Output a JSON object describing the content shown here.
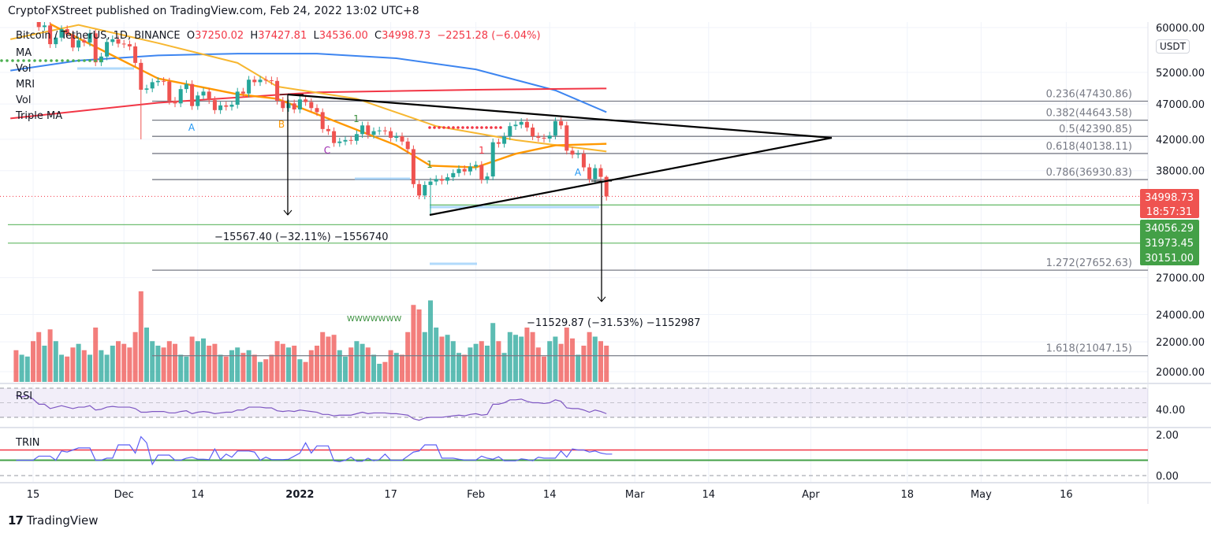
{
  "header": {
    "published": "CryptoFXStreet published on TradingView.com, Feb 24, 2022 13:02 UTC+8"
  },
  "legend": {
    "symbol": "Bitcoin / TetherUS, 1D, BINANCE",
    "o_label": "O",
    "o": "37250.02",
    "h_label": "H",
    "h": "37427.81",
    "l_label": "L",
    "l": "34536.00",
    "c_label": "C",
    "c": "34998.73",
    "change": "−2251.28 (−6.04%)",
    "indicators": [
      "MA",
      "Vol",
      "MRI",
      "Vol",
      "Triple MA"
    ]
  },
  "currency_badge": "USDT",
  "footer": {
    "brand": "TradingView"
  },
  "colors": {
    "up": "#26a69a",
    "down": "#ef5350",
    "ma_blue": "#3d85f0",
    "ma_orange": "#ff9800",
    "ma_yellow": "#f7b731",
    "ma_red": "#f23645",
    "rsi": "#7e57c2",
    "trin": "#5b5ef5",
    "fib": "#787b86",
    "support": "#4caf50"
  },
  "chart_data": [
    {
      "type": "candlestick",
      "title": "Bitcoin / TetherUS, 1D, BINANCE",
      "scale": "log",
      "ylim": [
        19500,
        61000
      ],
      "y_ticks": [
        "60000.00",
        "52000.00",
        "47000.00",
        "42000.00",
        "38000.00",
        "27000.00",
        "24000.00",
        "22000.00",
        "20000.00"
      ],
      "y_tick_values": [
        60000,
        52000,
        47000,
        42000,
        38000,
        27000,
        24000,
        22000,
        20000
      ],
      "x_ticks": [
        {
          "label": "15",
          "date": "2021-11-15"
        },
        {
          "label": "Dec",
          "date": "2021-12-01"
        },
        {
          "label": "14",
          "date": "2021-12-14"
        },
        {
          "label": "2022",
          "date": "2022-01-01"
        },
        {
          "label": "17",
          "date": "2022-01-17"
        },
        {
          "label": "Feb",
          "date": "2022-02-01"
        },
        {
          "label": "14",
          "date": "2022-02-14"
        },
        {
          "label": "Mar",
          "date": "2022-03-01"
        },
        {
          "label": "14",
          "date": "2022-03-14"
        },
        {
          "label": "Apr",
          "date": "2022-04-01"
        },
        {
          "label": "18",
          "date": "2022-04-18"
        },
        {
          "label": "May",
          "date": "2022-05-01"
        },
        {
          "label": "16",
          "date": "2022-05-16"
        }
      ],
      "start_date": "2021-11-12",
      "close_k": [
        64.2,
        64.4,
        65.5,
        63.6,
        60.1,
        60.4,
        56.9,
        58.1,
        59.7,
        58.7,
        56.3,
        57.6,
        57.2,
        58.9,
        53.7,
        54.7,
        57.3,
        57.8,
        57.0,
        56.9,
        56.5,
        53.6,
        49.2,
        49.4,
        50.4,
        50.6,
        50.5,
        47.5,
        47.1,
        49.3,
        50.1,
        46.7,
        48.3,
        48.9,
        47.6,
        46.1,
        46.8,
        46.6,
        46.9,
        48.9,
        48.6,
        50.8,
        50.4,
        50.8,
        50.7,
        50.6,
        47.5,
        46.4,
        47.1,
        46.2,
        47.7,
        47.3,
        46.4,
        45.8,
        43.4,
        43.1,
        41.5,
        41.7,
        41.9,
        41.8,
        42.7,
        43.9,
        42.6,
        43.1,
        43.2,
        43.1,
        42.2,
        42.4,
        41.7,
        40.7,
        36.4,
        35.1,
        36.3,
        36.7,
        37.0,
        36.8,
        37.2,
        37.7,
        38.2,
        37.9,
        38.5,
        38.7,
        36.9,
        37.3,
        41.6,
        41.4,
        42.4,
        43.8,
        44.0,
        44.4,
        43.6,
        42.4,
        42.2,
        42.1,
        42.5,
        44.5,
        43.9,
        40.5,
        40.0,
        40.1,
        38.4,
        37.0,
        38.3,
        37.25
      ],
      "last_bar": {
        "date": "2022-02-24",
        "open": 37250.02,
        "high": 37427.81,
        "low": 34536.0,
        "close": 34998.73
      },
      "volume_relative": [
        35,
        30,
        28,
        45,
        55,
        40,
        58,
        45,
        30,
        28,
        38,
        42,
        35,
        30,
        60,
        35,
        30,
        40,
        45,
        42,
        38,
        55,
        100,
        60,
        45,
        40,
        38,
        45,
        42,
        30,
        28,
        50,
        45,
        48,
        40,
        42,
        30,
        28,
        35,
        38,
        32,
        35,
        30,
        22,
        25,
        30,
        45,
        42,
        38,
        40,
        25,
        22,
        35,
        40,
        55,
        50,
        52,
        35,
        28,
        38,
        45,
        42,
        38,
        30,
        20,
        22,
        35,
        32,
        30,
        55,
        85,
        80,
        55,
        90,
        60,
        50,
        52,
        45,
        32,
        30,
        38,
        42,
        45,
        40,
        65,
        45,
        32,
        55,
        52,
        50,
        60,
        55,
        38,
        28,
        45,
        50,
        42,
        60,
        48,
        30,
        40,
        55,
        50,
        45,
        40
      ],
      "moving_averages": [
        {
          "color": "ma_blue",
          "points": [
            [
              "2021-11-11",
              52300
            ],
            [
              "2021-11-23",
              54000
            ],
            [
              "2021-12-07",
              54900
            ],
            [
              "2021-12-21",
              55200
            ],
            [
              "2022-01-04",
              55200
            ],
            [
              "2022-01-18",
              54400
            ],
            [
              "2022-02-01",
              52500
            ],
            [
              "2022-02-15",
              49100
            ],
            [
              "2022-02-24",
              45800
            ]
          ]
        },
        {
          "color": "ma_red",
          "points": [
            [
              "2021-11-11",
              44900
            ],
            [
              "2021-12-07",
              47200
            ],
            [
              "2022-01-04",
              48800
            ],
            [
              "2022-02-01",
              49200
            ],
            [
              "2022-02-24",
              49400
            ]
          ]
        },
        {
          "color": "ma_yellow",
          "points": [
            [
              "2021-11-11",
              57800
            ],
            [
              "2021-11-23",
              60500
            ],
            [
              "2021-12-07",
              57100
            ],
            [
              "2021-12-21",
              53600
            ],
            [
              "2021-12-28",
              49700
            ],
            [
              "2022-01-11",
              47800
            ],
            [
              "2022-01-25",
              43800
            ],
            [
              "2022-02-08",
              41900
            ],
            [
              "2022-02-24",
              40400
            ]
          ]
        },
        {
          "color": "ma_orange",
          "points": [
            [
              "2021-11-18",
              60700
            ],
            [
              "2021-12-07",
              51000
            ],
            [
              "2021-12-21",
              48500
            ],
            [
              "2021-12-28",
              47800
            ],
            [
              "2022-01-04",
              45500
            ],
            [
              "2022-01-18",
              41200
            ],
            [
              "2022-01-24",
              38600
            ],
            [
              "2022-02-01",
              38400
            ],
            [
              "2022-02-08",
              40100
            ],
            [
              "2022-02-15",
              41200
            ],
            [
              "2022-02-24",
              41400
            ]
          ]
        }
      ],
      "fib_levels": [
        {
          "label": "0.236(47430.86)",
          "price": 47430.86
        },
        {
          "label": "0.382(44643.58)",
          "price": 44643.58
        },
        {
          "label": "0.5(42390.85)",
          "price": 42390.85
        },
        {
          "label": "0.618(40138.11)",
          "price": 40138.11
        },
        {
          "label": "0.786(36930.83)",
          "price": 36930.83
        },
        {
          "label": "1.272(27652.63)",
          "price": 27652.63
        },
        {
          "label": "1.618(21047.15)",
          "price": 21047.15
        }
      ],
      "support_levels": [
        34056.29,
        31973.45,
        30151.0
      ],
      "price_labels": {
        "last": "34998.73",
        "countdown": "18:57:31",
        "supports": [
          "34056.29",
          "31973.45",
          "30151.00"
        ]
      },
      "measurements": [
        "−15567.40 (−32.11%) −1556740",
        "−11529.87 (−31.53%) −1152987"
      ],
      "wave_labels": [
        {
          "text": "A",
          "color": "#2196f3"
        },
        {
          "text": "B",
          "color": "#ff9800"
        },
        {
          "text": "C",
          "color": "#9c27b0"
        },
        {
          "text": "1",
          "color": "#388e3c"
        },
        {
          "text": "1",
          "color": "#388e3c"
        },
        {
          "text": "1",
          "color": "#f23645"
        },
        {
          "text": "A",
          "color": "#2196f3"
        }
      ],
      "pattern_text": "WWWWWWW"
    },
    {
      "type": "line",
      "title": "RSI",
      "y_ticks": [
        "40.00"
      ],
      "bands": [
        30,
        50,
        70
      ],
      "values": [
        60,
        58,
        60,
        55,
        48,
        48,
        42,
        44,
        46,
        44,
        42,
        44,
        44,
        46,
        40,
        41,
        44,
        45,
        44,
        44,
        44,
        42,
        37,
        37,
        38,
        38,
        38,
        36,
        36,
        38,
        39,
        35,
        37,
        38,
        37,
        35,
        36,
        37,
        37,
        40,
        40,
        44,
        44,
        44,
        43,
        43,
        39,
        38,
        39,
        38,
        40,
        39,
        38,
        37,
        34,
        34,
        32,
        33,
        33,
        33,
        35,
        37,
        35,
        36,
        36,
        36,
        35,
        35,
        34,
        33,
        28,
        26,
        29,
        30,
        30,
        30,
        31,
        32,
        33,
        32,
        34,
        35,
        33,
        34,
        48,
        48,
        50,
        54,
        54,
        55,
        52,
        50,
        50,
        49,
        50,
        54,
        52,
        43,
        42,
        42,
        40,
        37,
        40,
        38,
        35
      ]
    },
    {
      "type": "line",
      "title": "TRIN",
      "y_ticks": [
        "2.00",
        "0.00"
      ],
      "upper_line": 1.25,
      "lower_line": 0.75,
      "values": [
        0.75,
        0.75,
        0.75,
        0.75,
        0.95,
        0.95,
        0.95,
        0.75,
        1.2,
        1.15,
        1.25,
        1.35,
        1.35,
        1.35,
        0.75,
        0.75,
        0.85,
        0.85,
        1.5,
        1.5,
        1.5,
        1.1,
        1.9,
        1.6,
        0.55,
        1.0,
        1.0,
        1.0,
        0.75,
        0.75,
        0.85,
        0.9,
        0.8,
        0.8,
        0.78,
        1.3,
        0.78,
        1.05,
        0.9,
        1.2,
        1.2,
        1.2,
        1.15,
        0.75,
        0.9,
        0.78,
        0.78,
        0.78,
        0.8,
        0.95,
        1.1,
        1.6,
        1.1,
        1.45,
        1.45,
        1.45,
        0.72,
        0.68,
        0.75,
        0.9,
        0.7,
        0.7,
        0.85,
        0.72,
        0.78,
        1.05,
        0.75,
        0.75,
        0.75,
        0.95,
        1.15,
        1.2,
        1.5,
        1.5,
        1.5,
        0.85,
        0.85,
        0.85,
        0.8,
        0.76,
        0.76,
        0.76,
        0.95,
        0.85,
        0.8,
        0.92,
        0.72,
        0.72,
        0.72,
        0.82,
        0.78,
        0.72,
        0.9,
        0.85,
        0.85,
        0.85,
        1.2,
        0.9,
        1.3,
        1.25,
        1.25,
        1.15,
        1.2,
        1.1,
        1.05,
        1.05
      ]
    }
  ]
}
